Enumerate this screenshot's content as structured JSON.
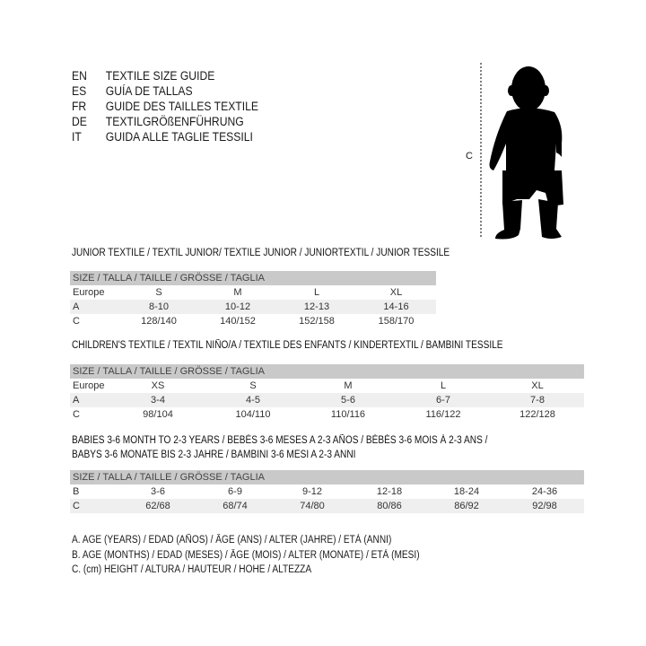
{
  "languages": [
    {
      "code": "EN",
      "text": "TEXTILE SIZE GUIDE"
    },
    {
      "code": "ES",
      "text": "GUÍA DE TALLAS"
    },
    {
      "code": "FR",
      "text": "GUIDE DES TAILLES TEXTILE"
    },
    {
      "code": "DE",
      "text": "TEXTILGRÖßENFÜHRUNG"
    },
    {
      "code": "IT",
      "text": "GUIDA ALLE TAGLIE TESSILI"
    }
  ],
  "figure": {
    "measure_label": "C",
    "icon": "child-silhouette-icon"
  },
  "size_header": "SIZE / TALLA / TAILLE / GRÖSSE / TAGLIA",
  "junior": {
    "title": "JUNIOR TEXTILE / TEXTIL JUNIOR/ TEXTILE JUNIOR / JUNIORTEXTIL / JUNIOR TESSILE",
    "rows": [
      {
        "label": "Europe",
        "values": [
          "S",
          "M",
          "L",
          "XL"
        ]
      },
      {
        "label": "A",
        "values": [
          "8-10",
          "10-12",
          "12-13",
          "14-16"
        ]
      },
      {
        "label": "C",
        "values": [
          "128/140",
          "140/152",
          "152/158",
          "158/170"
        ]
      }
    ]
  },
  "children": {
    "title": "CHILDREN'S TEXTILE / TEXTIL NIÑO/A / TEXTILE DES ENFANTS / KINDERTEXTIL / BAMBINI TESSILE",
    "rows": [
      {
        "label": "Europe",
        "values": [
          "XS",
          "S",
          "M",
          "L",
          "XL"
        ]
      },
      {
        "label": "A",
        "values": [
          "3-4",
          "4-5",
          "5-6",
          "6-7",
          "7-8"
        ]
      },
      {
        "label": "C",
        "values": [
          "98/104",
          "104/110",
          "110/116",
          "116/122",
          "122/128"
        ]
      }
    ]
  },
  "babies": {
    "title_line1": "BABIES 3-6 MONTH TO 2-3 YEARS / BEBÉS 3-6 MESES A 2-3 AÑOS / BÉBÉS 3-6 MOIS À 2-3 ANS /",
    "title_line2": "BABYS 3-6 MONATE BIS 2-3 JAHRE / BAMBINI 3-6 MESI A 2-3 ANNI",
    "rows": [
      {
        "label": "B",
        "values": [
          "3-6",
          "6-9",
          "9-12",
          "12-18",
          "18-24",
          "24-36"
        ]
      },
      {
        "label": "C",
        "values": [
          "62/68",
          "68/74",
          "74/80",
          "80/86",
          "86/92",
          "92/98"
        ]
      }
    ]
  },
  "legend": [
    "A. AGE (YEARS) / EDAD (AÑOS) / ÂGE (ANS) / ALTER (JAHRE) / ETÀ (ANNI)",
    "B. AGE (MONTHS) / EDAD (MESES) / ÂGE (MOIS) / ALTER (MONATE) / ETÀ (MESI)",
    "C. (cm) HEIGHT / ALTURA / HAUTEUR / HÖHE / ALTEZZA"
  ]
}
